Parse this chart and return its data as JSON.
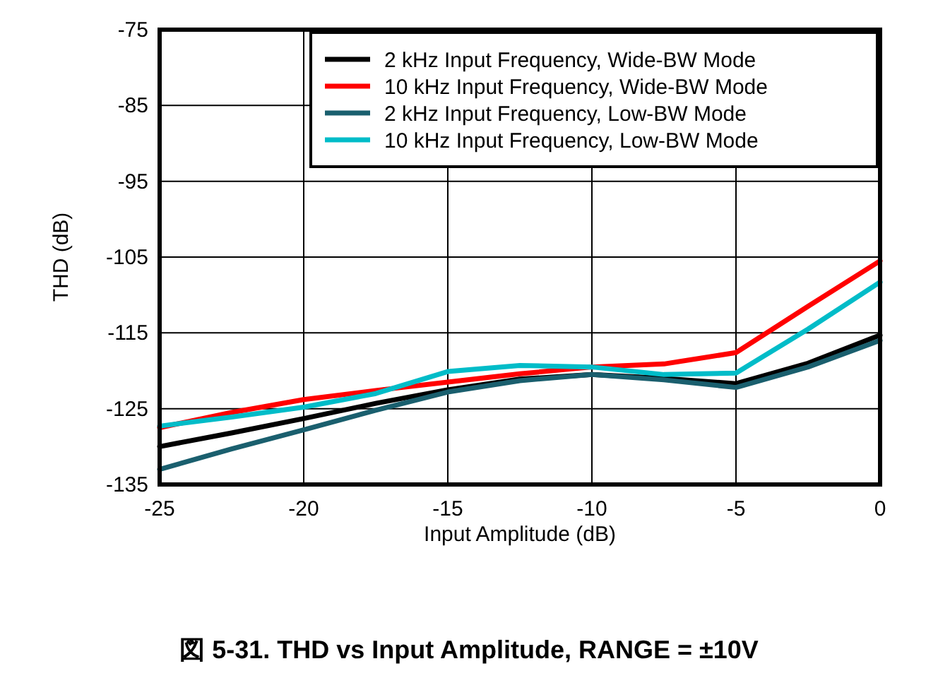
{
  "chart_data": {
    "type": "line",
    "title": "図 5-31. THD vs Input Amplitude, RANGE = ±10V",
    "xlabel": "Input Amplitude (dB)",
    "ylabel": "THD (dB)",
    "x": [
      -25,
      -22.5,
      -20,
      -17.5,
      -15,
      -12.5,
      -10,
      -7.5,
      -5,
      -2.5,
      0
    ],
    "series": [
      {
        "name": "2 kHz Input Frequency, Wide-BW Mode",
        "color": "#000000",
        "values": [
          -130,
          -128.2,
          -126.3,
          -124.3,
          -122.5,
          -121.1,
          -120.5,
          -121,
          -121.7,
          -119,
          -115.3
        ]
      },
      {
        "name": "10 kHz Input Frequency, Wide-BW Mode",
        "color": "#ff0000",
        "values": [
          -127.5,
          -125.5,
          -123.8,
          -122.6,
          -121.5,
          -120.4,
          -119.5,
          -119.1,
          -117.6,
          -111.5,
          -105.5
        ]
      },
      {
        "name": "2 kHz Input Frequency, Low-BW Mode",
        "color": "#1a5f6e",
        "values": [
          -133,
          -130.3,
          -127.8,
          -125.2,
          -122.8,
          -121.3,
          -120.5,
          -121.2,
          -122.2,
          -119.5,
          -116
        ]
      },
      {
        "name": "10 kHz Input Frequency, Low-BW Mode",
        "color": "#00bcc8",
        "values": [
          -127.3,
          -126.1,
          -124.8,
          -123,
          -120.1,
          -119.3,
          -119.5,
          -120.5,
          -120.3,
          -114.5,
          -108.3
        ]
      }
    ],
    "xlim": [
      -25,
      0
    ],
    "xticks": [
      -25,
      -20,
      -15,
      -10,
      -5,
      0
    ],
    "ylim": [
      -135,
      -75
    ],
    "yticks": [
      -135,
      -125,
      -115,
      -105,
      -95,
      -85,
      -75
    ],
    "grid": true,
    "legend": "top right",
    "marker": "none",
    "line_style": "solid"
  }
}
